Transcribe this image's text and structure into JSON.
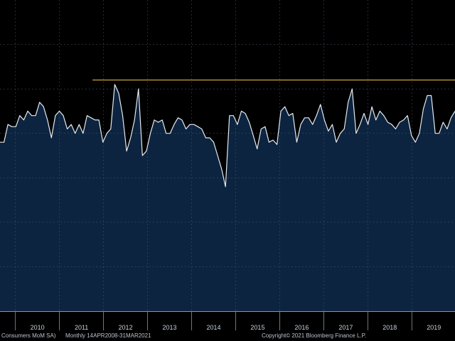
{
  "chart_data": {
    "type": "area",
    "title": "",
    "xlabel": "",
    "ylabel": "",
    "x_tick_labels": [
      "2010",
      "2011",
      "2012",
      "2013",
      "2014",
      "2015",
      "2016",
      "2017",
      "2018",
      "2019"
    ],
    "x_start_year": 2009.65,
    "x_end_year": 2019.98,
    "ylim": [
      -4,
      3
    ],
    "grid": true,
    "reference_line": {
      "value": 1.2,
      "start_year": 2011.75,
      "color": "#c8a23c"
    },
    "series": [
      {
        "color_line": "#e6eaee",
        "color_fill": "#0c2440",
        "values": [
          -0.2,
          -0.2,
          0.2,
          0.15,
          0.15,
          0.4,
          0.3,
          0.5,
          0.4,
          0.4,
          0.7,
          0.6,
          0.3,
          -0.1,
          0.4,
          0.5,
          0.4,
          0.1,
          0.2,
          0.0,
          0.2,
          0.0,
          0.4,
          0.35,
          0.3,
          0.3,
          -0.2,
          0.0,
          0.1,
          1.1,
          0.9,
          0.4,
          -0.4,
          -0.1,
          0.3,
          1.0,
          -0.5,
          -0.4,
          0.0,
          0.3,
          0.25,
          0.3,
          0.0,
          0.0,
          0.2,
          0.35,
          0.3,
          0.1,
          0.2,
          0.2,
          0.15,
          0.1,
          -0.1,
          -0.1,
          -0.2,
          -0.5,
          -0.8,
          -1.2,
          0.4,
          0.4,
          0.2,
          0.5,
          0.45,
          0.25,
          -0.05,
          -0.35,
          0.1,
          0.15,
          -0.2,
          -0.15,
          -0.25,
          0.5,
          0.6,
          0.4,
          0.45,
          -0.2,
          0.2,
          0.35,
          0.35,
          0.2,
          0.4,
          0.65,
          0.3,
          0.05,
          0.2,
          -0.2,
          0.0,
          0.1,
          0.7,
          1.0,
          0.0,
          0.2,
          0.45,
          0.2,
          0.6,
          0.3,
          0.5,
          0.4,
          0.25,
          0.2,
          0.1,
          0.25,
          0.3,
          0.4,
          -0.05,
          -0.2,
          0.0,
          0.55,
          0.85,
          0.85,
          0.0,
          0.0,
          0.25,
          0.1,
          0.35,
          0.5
        ]
      }
    ]
  },
  "footer": {
    "left_text": "Consumers MoM SA)",
    "middle_text": "Monthly 14APR2008-31MAR2021",
    "right_text": "Copyright© 2021 Bloomberg Finance L.P."
  },
  "colors": {
    "background": "#000000",
    "plot_fill": "#0c2440",
    "grid": "#4a5a6e",
    "line": "#e6eaee",
    "reference_line": "#c8a23c"
  }
}
